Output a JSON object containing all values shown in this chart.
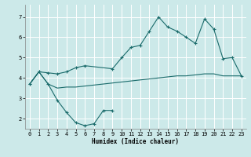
{
  "xlabel": "Humidex (Indice chaleur)",
  "xlim": [
    -0.5,
    23.5
  ],
  "ylim": [
    1.5,
    7.6
  ],
  "yticks": [
    2,
    3,
    4,
    5,
    6,
    7
  ],
  "xticks": [
    0,
    1,
    2,
    3,
    4,
    5,
    6,
    7,
    8,
    9,
    10,
    11,
    12,
    13,
    14,
    15,
    16,
    17,
    18,
    19,
    20,
    21,
    22,
    23
  ],
  "bg_color": "#cce9e9",
  "line_color": "#1a6b6b",
  "grid_color": "#ffffff",
  "line1_x": [
    0,
    1,
    2,
    3,
    4,
    5,
    6,
    7,
    8,
    9,
    10,
    11,
    12,
    13,
    14,
    15,
    16,
    17,
    18,
    19,
    20,
    21,
    22,
    23
  ],
  "line1_y": [
    3.7,
    4.3,
    3.7,
    3.5,
    3.55,
    3.55,
    3.6,
    3.65,
    3.7,
    3.75,
    3.8,
    3.85,
    3.9,
    3.95,
    4.0,
    4.05,
    4.1,
    4.1,
    4.15,
    4.2,
    4.2,
    4.1,
    4.1,
    4.1
  ],
  "line2_x": [
    0,
    1,
    2,
    3,
    4,
    5,
    6,
    7,
    8,
    9
  ],
  "line2_y": [
    3.7,
    4.3,
    3.7,
    2.9,
    2.3,
    1.8,
    1.65,
    1.75,
    2.4,
    2.4
  ],
  "line3_x": [
    0,
    1,
    2,
    3,
    4,
    5,
    6,
    9,
    10,
    11,
    12,
    13,
    14,
    15,
    16,
    17,
    18,
    19,
    20,
    21,
    22,
    23
  ],
  "line3_y": [
    3.7,
    4.3,
    4.25,
    4.2,
    4.3,
    4.5,
    4.6,
    4.45,
    5.0,
    5.5,
    5.6,
    6.3,
    7.0,
    6.5,
    6.3,
    6.0,
    5.7,
    6.9,
    6.4,
    4.95,
    5.0,
    4.1
  ]
}
